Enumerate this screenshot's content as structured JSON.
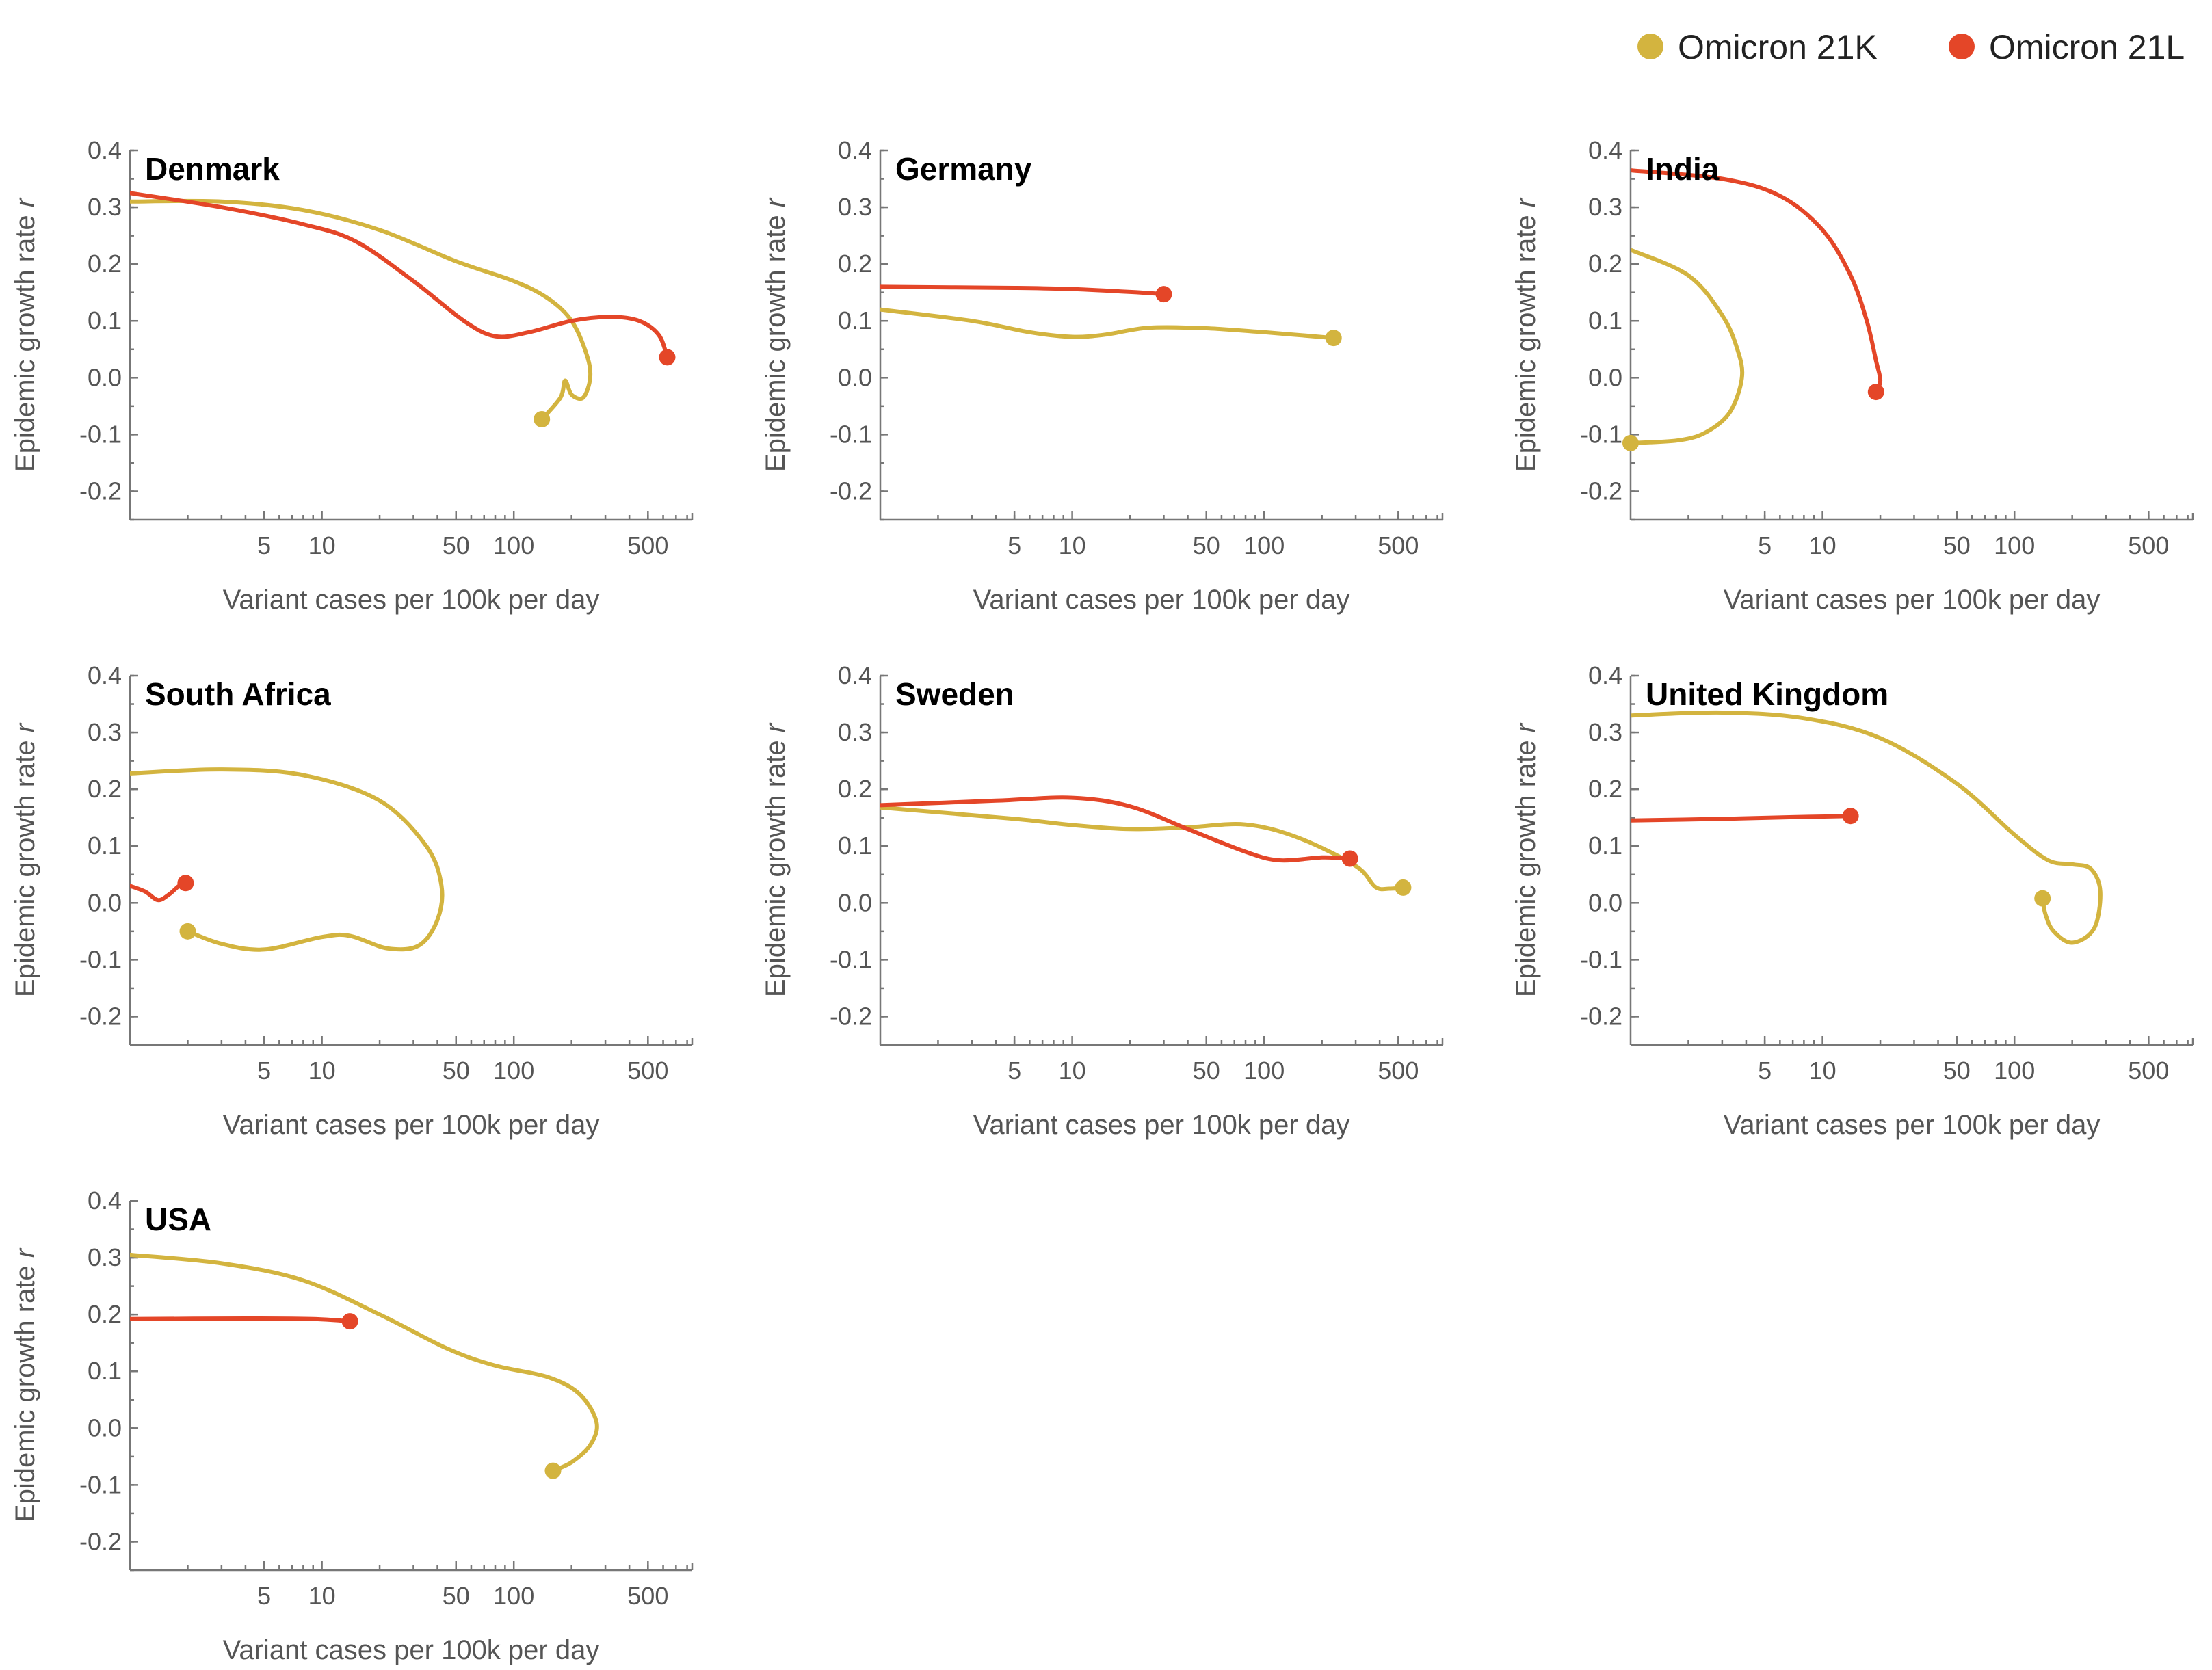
{
  "colors": {
    "omicron_21k": "#D3B43F",
    "omicron_21l": "#E44628"
  },
  "legend": {
    "position": "top-right",
    "items": [
      {
        "label": "Omicron 21K",
        "color": "#D3B43F"
      },
      {
        "label": "Omicron 21L",
        "color": "#E44628"
      }
    ]
  },
  "chart_data": [
    {
      "type": "line",
      "title": "Denmark",
      "xlabel": "Variant cases per 100k per day",
      "ylabel": "Epidemic growth rate",
      "ylabel_italic": "r",
      "x_scale": "log",
      "xlim": [
        1,
        850
      ],
      "ylim": [
        -0.25,
        0.4
      ],
      "x_ticks": [
        5,
        10,
        50,
        100,
        500
      ],
      "y_ticks": [
        0.4,
        0.3,
        0.2,
        0.1,
        0.0,
        -0.1,
        -0.2
      ],
      "y_tick_labels": [
        "0.4",
        "0.3",
        "0.2",
        "0.1",
        "0.0",
        "-0.1",
        "-0.2"
      ],
      "series": [
        {
          "name": "Omicron 21K",
          "color": "#D3B43F",
          "points": [
            [
              1,
              0.31
            ],
            [
              3,
              0.31
            ],
            [
              8,
              0.295
            ],
            [
              20,
              0.26
            ],
            [
              50,
              0.205
            ],
            [
              100,
              0.17
            ],
            [
              150,
              0.14
            ],
            [
              200,
              0.1
            ],
            [
              240,
              0.04
            ],
            [
              250,
              0.0
            ],
            [
              230,
              -0.035
            ],
            [
              200,
              -0.03
            ],
            [
              185,
              -0.005
            ],
            [
              175,
              -0.035
            ],
            [
              140,
              -0.073
            ]
          ]
        },
        {
          "name": "Omicron 21L",
          "color": "#E44628",
          "points": [
            [
              1,
              0.325
            ],
            [
              3,
              0.3
            ],
            [
              8,
              0.27
            ],
            [
              15,
              0.24
            ],
            [
              30,
              0.17
            ],
            [
              55,
              0.1
            ],
            [
              80,
              0.073
            ],
            [
              120,
              0.08
            ],
            [
              200,
              0.1
            ],
            [
              320,
              0.107
            ],
            [
              450,
              0.1
            ],
            [
              570,
              0.075
            ],
            [
              630,
              0.036
            ]
          ]
        }
      ]
    },
    {
      "type": "line",
      "title": "Germany",
      "xlabel": "Variant cases per 100k per day",
      "ylabel": "Epidemic growth rate",
      "ylabel_italic": "r",
      "x_scale": "log",
      "xlim": [
        1,
        850
      ],
      "ylim": [
        -0.25,
        0.4
      ],
      "x_ticks": [
        5,
        10,
        50,
        100,
        500
      ],
      "y_ticks": [
        0.4,
        0.3,
        0.2,
        0.1,
        0.0,
        -0.1,
        -0.2
      ],
      "y_tick_labels": [
        "0.4",
        "0.3",
        "0.2",
        "0.1",
        "0.0",
        "-0.1",
        "-0.2"
      ],
      "series": [
        {
          "name": "Omicron 21K",
          "color": "#D3B43F",
          "points": [
            [
              1,
              0.12
            ],
            [
              3,
              0.1
            ],
            [
              6,
              0.08
            ],
            [
              10,
              0.072
            ],
            [
              15,
              0.076
            ],
            [
              25,
              0.088
            ],
            [
              50,
              0.087
            ],
            [
              100,
              0.08
            ],
            [
              230,
              0.07
            ]
          ]
        },
        {
          "name": "Omicron 21L",
          "color": "#E44628",
          "points": [
            [
              1,
              0.16
            ],
            [
              5,
              0.158
            ],
            [
              10,
              0.156
            ],
            [
              20,
              0.151
            ],
            [
              30,
              0.147
            ]
          ]
        }
      ]
    },
    {
      "type": "line",
      "title": "India",
      "xlabel": "Variant cases per 100k per day",
      "ylabel": "Epidemic growth rate",
      "ylabel_italic": "r",
      "x_scale": "log",
      "xlim": [
        1,
        850
      ],
      "ylim": [
        -0.25,
        0.4
      ],
      "x_ticks": [
        5,
        10,
        50,
        100,
        500
      ],
      "y_ticks": [
        0.4,
        0.3,
        0.2,
        0.1,
        0.0,
        -0.1,
        -0.2
      ],
      "y_tick_labels": [
        "0.4",
        "0.3",
        "0.2",
        "0.1",
        "0.0",
        "-0.1",
        "-0.2"
      ],
      "series": [
        {
          "name": "Omicron 21K",
          "color": "#D3B43F",
          "points": [
            [
              1,
              0.225
            ],
            [
              2,
              0.18
            ],
            [
              3,
              0.11
            ],
            [
              3.6,
              0.05
            ],
            [
              3.8,
              0.0
            ],
            [
              3.3,
              -0.06
            ],
            [
              2.5,
              -0.095
            ],
            [
              1.8,
              -0.11
            ],
            [
              1,
              -0.115
            ]
          ]
        },
        {
          "name": "Omicron 21L",
          "color": "#E44628",
          "points": [
            [
              1,
              0.365
            ],
            [
              3,
              0.35
            ],
            [
              6,
              0.32
            ],
            [
              10,
              0.26
            ],
            [
              14,
              0.18
            ],
            [
              17,
              0.1
            ],
            [
              19,
              0.03
            ],
            [
              20,
              -0.005
            ],
            [
              19,
              -0.025
            ]
          ]
        }
      ]
    },
    {
      "type": "line",
      "title": "South Africa",
      "xlabel": "Variant cases per 100k per day",
      "ylabel": "Epidemic growth rate",
      "ylabel_italic": "r",
      "x_scale": "log",
      "xlim": [
        1,
        850
      ],
      "ylim": [
        -0.25,
        0.4
      ],
      "x_ticks": [
        5,
        10,
        50,
        100,
        500
      ],
      "y_ticks": [
        0.4,
        0.3,
        0.2,
        0.1,
        0.0,
        -0.1,
        -0.2
      ],
      "y_tick_labels": [
        "0.4",
        "0.3",
        "0.2",
        "0.1",
        "0.0",
        "-0.1",
        "-0.2"
      ],
      "series": [
        {
          "name": "Omicron 21K",
          "color": "#D3B43F",
          "points": [
            [
              1,
              0.228
            ],
            [
              3,
              0.235
            ],
            [
              8,
              0.225
            ],
            [
              20,
              0.18
            ],
            [
              35,
              0.1
            ],
            [
              42,
              0.03
            ],
            [
              40,
              -0.03
            ],
            [
              32,
              -0.075
            ],
            [
              22,
              -0.08
            ],
            [
              14,
              -0.058
            ],
            [
              10,
              -0.06
            ],
            [
              5,
              -0.082
            ],
            [
              3,
              -0.072
            ],
            [
              2,
              -0.05
            ]
          ]
        },
        {
          "name": "Omicron 21L",
          "color": "#E44628",
          "points": [
            [
              1,
              0.03
            ],
            [
              1.2,
              0.02
            ],
            [
              1.4,
              0.005
            ],
            [
              1.6,
              0.015
            ],
            [
              1.8,
              0.03
            ],
            [
              1.95,
              0.035
            ]
          ]
        }
      ]
    },
    {
      "type": "line",
      "title": "Sweden",
      "xlabel": "Variant cases per 100k per day",
      "ylabel": "Epidemic growth rate",
      "ylabel_italic": "r",
      "x_scale": "log",
      "xlim": [
        1,
        850
      ],
      "ylim": [
        -0.25,
        0.4
      ],
      "x_ticks": [
        5,
        10,
        50,
        100,
        500
      ],
      "y_ticks": [
        0.4,
        0.3,
        0.2,
        0.1,
        0.0,
        -0.1,
        -0.2
      ],
      "y_tick_labels": [
        "0.4",
        "0.3",
        "0.2",
        "0.1",
        "0.0",
        "-0.1",
        "-0.2"
      ],
      "series": [
        {
          "name": "Omicron 21K",
          "color": "#D3B43F",
          "points": [
            [
              1,
              0.168
            ],
            [
              5,
              0.148
            ],
            [
              10,
              0.137
            ],
            [
              20,
              0.13
            ],
            [
              40,
              0.133
            ],
            [
              80,
              0.138
            ],
            [
              150,
              0.115
            ],
            [
              300,
              0.065
            ],
            [
              380,
              0.028
            ],
            [
              450,
              0.025
            ],
            [
              530,
              0.027
            ]
          ]
        },
        {
          "name": "Omicron 21L",
          "color": "#E44628",
          "points": [
            [
              1,
              0.172
            ],
            [
              4,
              0.18
            ],
            [
              10,
              0.185
            ],
            [
              20,
              0.17
            ],
            [
              40,
              0.13
            ],
            [
              80,
              0.09
            ],
            [
              120,
              0.075
            ],
            [
              200,
              0.08
            ],
            [
              280,
              0.078
            ]
          ]
        }
      ]
    },
    {
      "type": "line",
      "title": "United Kingdom",
      "xlabel": "Variant cases per 100k per day",
      "ylabel": "Epidemic growth rate",
      "ylabel_italic": "r",
      "x_scale": "log",
      "xlim": [
        1,
        850
      ],
      "ylim": [
        -0.25,
        0.4
      ],
      "x_ticks": [
        5,
        10,
        50,
        100,
        500
      ],
      "y_ticks": [
        0.4,
        0.3,
        0.2,
        0.1,
        0.0,
        -0.1,
        -0.2
      ],
      "y_tick_labels": [
        "0.4",
        "0.3",
        "0.2",
        "0.1",
        "0.0",
        "-0.1",
        "-0.2"
      ],
      "series": [
        {
          "name": "Omicron 21K",
          "color": "#D3B43F",
          "points": [
            [
              1,
              0.33
            ],
            [
              3,
              0.335
            ],
            [
              8,
              0.325
            ],
            [
              20,
              0.29
            ],
            [
              50,
              0.21
            ],
            [
              100,
              0.12
            ],
            [
              150,
              0.075
            ],
            [
              200,
              0.068
            ],
            [
              250,
              0.06
            ],
            [
              280,
              0.02
            ],
            [
              260,
              -0.045
            ],
            [
              200,
              -0.07
            ],
            [
              160,
              -0.05
            ],
            [
              145,
              -0.02
            ],
            [
              140,
              0.008
            ]
          ]
        },
        {
          "name": "Omicron 21L",
          "color": "#E44628",
          "points": [
            [
              1,
              0.145
            ],
            [
              3,
              0.148
            ],
            [
              7,
              0.151
            ],
            [
              14,
              0.153
            ]
          ]
        }
      ]
    },
    {
      "type": "line",
      "title": "USA",
      "xlabel": "Variant cases per 100k per day",
      "ylabel": "Epidemic growth rate",
      "ylabel_italic": "r",
      "x_scale": "log",
      "xlim": [
        1,
        850
      ],
      "ylim": [
        -0.25,
        0.4
      ],
      "x_ticks": [
        5,
        10,
        50,
        100,
        500
      ],
      "y_ticks": [
        0.4,
        0.3,
        0.2,
        0.1,
        0.0,
        -0.1,
        -0.2
      ],
      "y_tick_labels": [
        "0.4",
        "0.3",
        "0.2",
        "0.1",
        "0.0",
        "-0.1",
        "-0.2"
      ],
      "series": [
        {
          "name": "Omicron 21K",
          "color": "#D3B43F",
          "points": [
            [
              1,
              0.305
            ],
            [
              3,
              0.29
            ],
            [
              8,
              0.26
            ],
            [
              20,
              0.2
            ],
            [
              45,
              0.14
            ],
            [
              80,
              0.11
            ],
            [
              150,
              0.09
            ],
            [
              220,
              0.06
            ],
            [
              270,
              0.01
            ],
            [
              250,
              -0.03
            ],
            [
              200,
              -0.06
            ],
            [
              160,
              -0.075
            ]
          ]
        },
        {
          "name": "Omicron 21L",
          "color": "#E44628",
          "points": [
            [
              1,
              0.192
            ],
            [
              4,
              0.193
            ],
            [
              9,
              0.192
            ],
            [
              14,
              0.188
            ]
          ]
        }
      ]
    }
  ]
}
